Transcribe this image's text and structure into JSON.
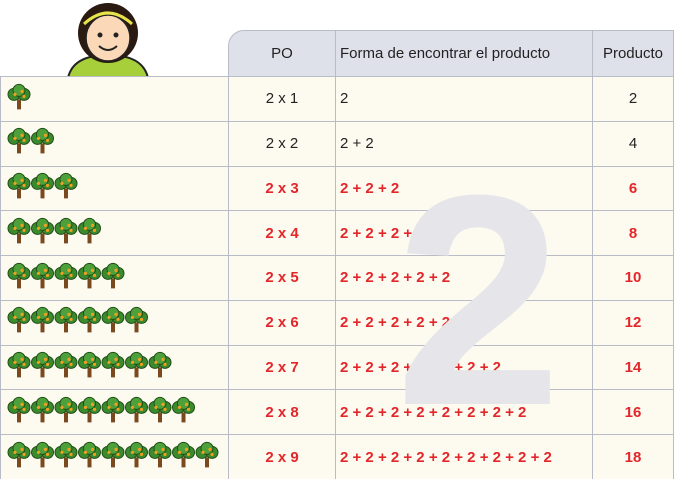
{
  "watermark": "2",
  "table": {
    "header": [
      "PO",
      "Forma de encontrar el producto",
      "Producto"
    ],
    "rows": [
      {
        "trees": 1,
        "po": "2 x 1",
        "forma": "2",
        "producto": "2"
      },
      {
        "trees": 2,
        "po": "2 x 2",
        "forma": "2 + 2",
        "producto": "4"
      },
      {
        "trees": 3,
        "po": "2 x 3",
        "forma": "2 + 2 + 2",
        "producto": "6"
      },
      {
        "trees": 4,
        "po": "2 x 4",
        "forma": "2 + 2 + 2 + 2",
        "producto": "8"
      },
      {
        "trees": 5,
        "po": "2 x 5",
        "forma": "2 + 2 + 2 + 2 + 2",
        "producto": "10"
      },
      {
        "trees": 6,
        "po": "2 x 6",
        "forma": "2 + 2 + 2 + 2 + 2 + 2",
        "producto": "12"
      },
      {
        "trees": 7,
        "po": "2 x 7",
        "forma": "2 + 2 + 2 + 2 + 2 + 2 + 2",
        "producto": "14"
      },
      {
        "trees": 8,
        "po": "2 x 8",
        "forma": "2 + 2 + 2 + 2 + 2 + 2 + 2 + 2",
        "producto": "16"
      },
      {
        "trees": 9,
        "po": "2 x 9",
        "forma": "2 + 2 + 2 + 2 + 2 + 2 + 2 + 2 + 2",
        "producto": "18"
      }
    ]
  }
}
